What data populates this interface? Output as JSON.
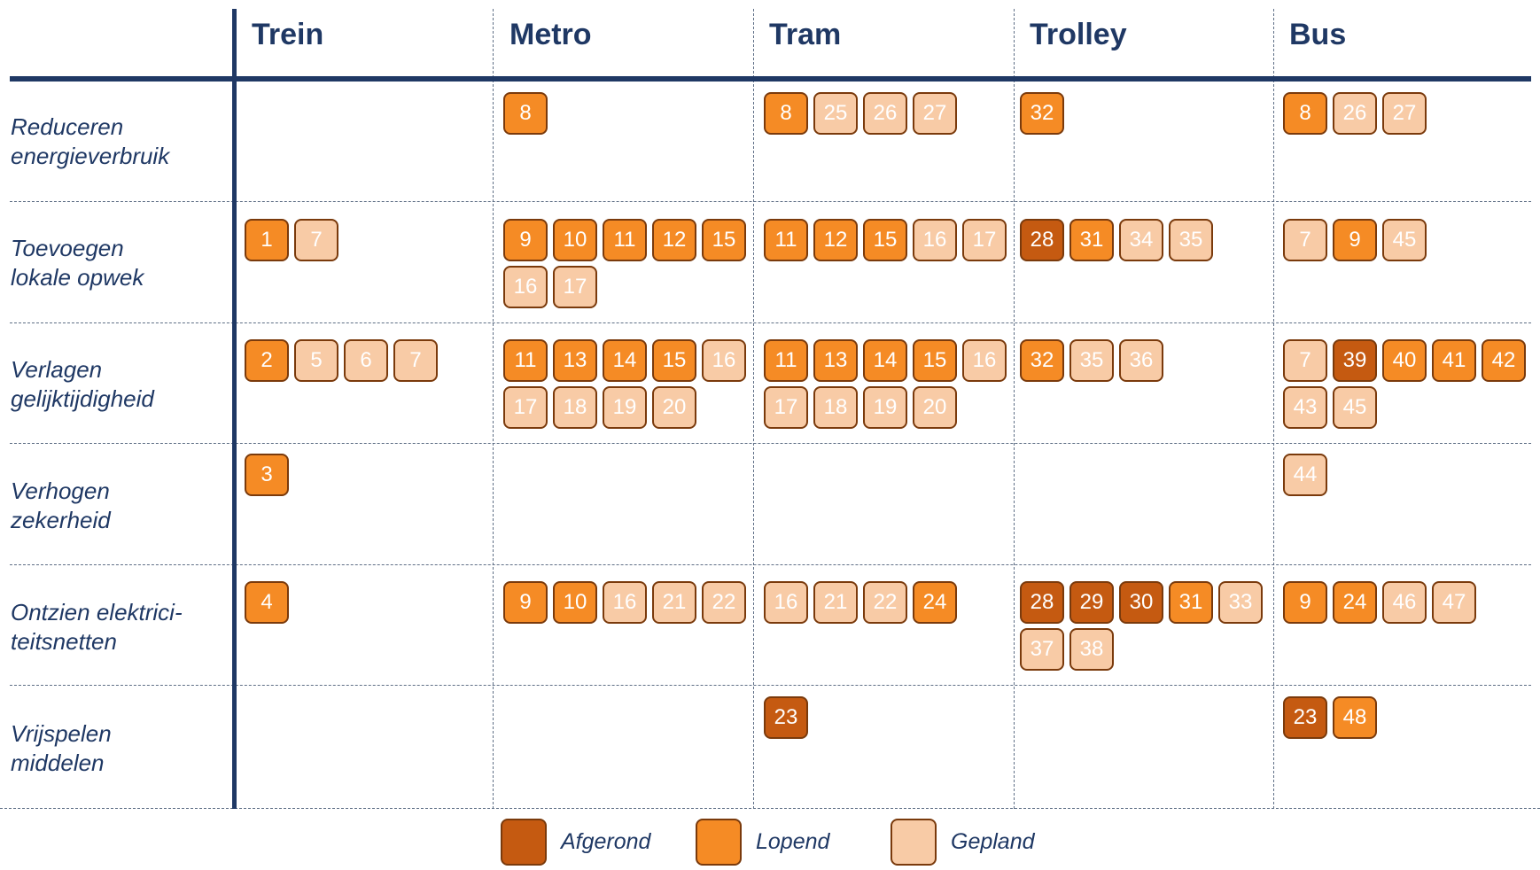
{
  "columns": [
    "Trein",
    "Metro",
    "Tram",
    "Trolley",
    "Bus"
  ],
  "rows": [
    {
      "label": [
        "Reduceren",
        "energieverbruik"
      ]
    },
    {
      "label": [
        "Toevoegen",
        "lokale opwek"
      ]
    },
    {
      "label": [
        "Verlagen",
        "gelijktijdigheid"
      ]
    },
    {
      "label": [
        "Verhogen",
        "zekerheid"
      ]
    },
    {
      "label": [
        "Ontzien elektrici-",
        "teitsnetten"
      ]
    },
    {
      "label": [
        "Vrijspelen",
        "middelen"
      ]
    }
  ],
  "cells": [
    [
      [],
      [
        {
          "n": "8",
          "s": "lopend"
        }
      ],
      [
        {
          "n": "8",
          "s": "lopend"
        },
        {
          "n": "25",
          "s": "gepland"
        },
        {
          "n": "26",
          "s": "gepland"
        },
        {
          "n": "27",
          "s": "gepland"
        }
      ],
      [
        {
          "n": "32",
          "s": "lopend"
        }
      ],
      [
        {
          "n": "8",
          "s": "lopend"
        },
        {
          "n": "26",
          "s": "gepland"
        },
        {
          "n": "27",
          "s": "gepland"
        }
      ]
    ],
    [
      [
        {
          "n": "1",
          "s": "lopend"
        },
        {
          "n": "7",
          "s": "gepland"
        }
      ],
      [
        {
          "n": "9",
          "s": "lopend"
        },
        {
          "n": "10",
          "s": "lopend"
        },
        {
          "n": "11",
          "s": "lopend"
        },
        {
          "n": "12",
          "s": "lopend"
        },
        {
          "n": "15",
          "s": "lopend"
        },
        {
          "n": "16",
          "s": "gepland"
        },
        {
          "n": "17",
          "s": "gepland"
        }
      ],
      [
        {
          "n": "11",
          "s": "lopend"
        },
        {
          "n": "12",
          "s": "lopend"
        },
        {
          "n": "15",
          "s": "lopend"
        },
        {
          "n": "16",
          "s": "gepland"
        },
        {
          "n": "17",
          "s": "gepland"
        }
      ],
      [
        {
          "n": "28",
          "s": "afgerond"
        },
        {
          "n": "31",
          "s": "lopend"
        },
        {
          "n": "34",
          "s": "gepland"
        },
        {
          "n": "35",
          "s": "gepland"
        }
      ],
      [
        {
          "n": "7",
          "s": "gepland"
        },
        {
          "n": "9",
          "s": "lopend"
        },
        {
          "n": "45",
          "s": "gepland"
        }
      ]
    ],
    [
      [
        {
          "n": "2",
          "s": "lopend"
        },
        {
          "n": "5",
          "s": "gepland"
        },
        {
          "n": "6",
          "s": "gepland"
        },
        {
          "n": "7",
          "s": "gepland"
        }
      ],
      [
        {
          "n": "11",
          "s": "lopend"
        },
        {
          "n": "13",
          "s": "lopend"
        },
        {
          "n": "14",
          "s": "lopend"
        },
        {
          "n": "15",
          "s": "lopend"
        },
        {
          "n": "16",
          "s": "gepland"
        },
        {
          "n": "17",
          "s": "gepland"
        },
        {
          "n": "18",
          "s": "gepland"
        },
        {
          "n": "19",
          "s": "gepland"
        },
        {
          "n": "20",
          "s": "gepland"
        }
      ],
      [
        {
          "n": "11",
          "s": "lopend"
        },
        {
          "n": "13",
          "s": "lopend"
        },
        {
          "n": "14",
          "s": "lopend"
        },
        {
          "n": "15",
          "s": "lopend"
        },
        {
          "n": "16",
          "s": "gepland"
        },
        {
          "n": "17",
          "s": "gepland"
        },
        {
          "n": "18",
          "s": "gepland"
        },
        {
          "n": "19",
          "s": "gepland"
        },
        {
          "n": "20",
          "s": "gepland"
        }
      ],
      [
        {
          "n": "32",
          "s": "lopend"
        },
        {
          "n": "35",
          "s": "gepland"
        },
        {
          "n": "36",
          "s": "gepland"
        }
      ],
      [
        {
          "n": "7",
          "s": "gepland"
        },
        {
          "n": "39",
          "s": "afgerond"
        },
        {
          "n": "40",
          "s": "lopend"
        },
        {
          "n": "41",
          "s": "lopend"
        },
        {
          "n": "42",
          "s": "lopend"
        },
        {
          "n": "43",
          "s": "gepland"
        },
        {
          "n": "45",
          "s": "gepland"
        }
      ]
    ],
    [
      [
        {
          "n": "3",
          "s": "lopend"
        }
      ],
      [],
      [],
      [],
      [
        {
          "n": "44",
          "s": "gepland"
        }
      ]
    ],
    [
      [
        {
          "n": "4",
          "s": "lopend"
        }
      ],
      [
        {
          "n": "9",
          "s": "lopend"
        },
        {
          "n": "10",
          "s": "lopend"
        },
        {
          "n": "16",
          "s": "gepland"
        },
        {
          "n": "21",
          "s": "gepland"
        },
        {
          "n": "22",
          "s": "gepland"
        }
      ],
      [
        {
          "n": "16",
          "s": "gepland"
        },
        {
          "n": "21",
          "s": "gepland"
        },
        {
          "n": "22",
          "s": "gepland"
        },
        {
          "n": "24",
          "s": "lopend"
        }
      ],
      [
        {
          "n": "28",
          "s": "afgerond"
        },
        {
          "n": "29",
          "s": "afgerond"
        },
        {
          "n": "30",
          "s": "afgerond"
        },
        {
          "n": "31",
          "s": "lopend"
        },
        {
          "n": "33",
          "s": "gepland"
        },
        {
          "n": "37",
          "s": "gepland"
        },
        {
          "n": "38",
          "s": "gepland"
        }
      ],
      [
        {
          "n": "9",
          "s": "lopend"
        },
        {
          "n": "24",
          "s": "lopend"
        },
        {
          "n": "46",
          "s": "gepland"
        },
        {
          "n": "47",
          "s": "gepland"
        }
      ]
    ],
    [
      [],
      [],
      [
        {
          "n": "23",
          "s": "afgerond"
        }
      ],
      [],
      [
        {
          "n": "23",
          "s": "afgerond"
        },
        {
          "n": "48",
          "s": "lopend"
        }
      ]
    ]
  ],
  "legend": [
    {
      "key": "afgerond",
      "label": "Afgerond",
      "color": "#c55a11"
    },
    {
      "key": "lopend",
      "label": "Lopend",
      "color": "#f58b25"
    },
    {
      "key": "gepland",
      "label": "Gepland",
      "color": "#f8cba6"
    }
  ]
}
